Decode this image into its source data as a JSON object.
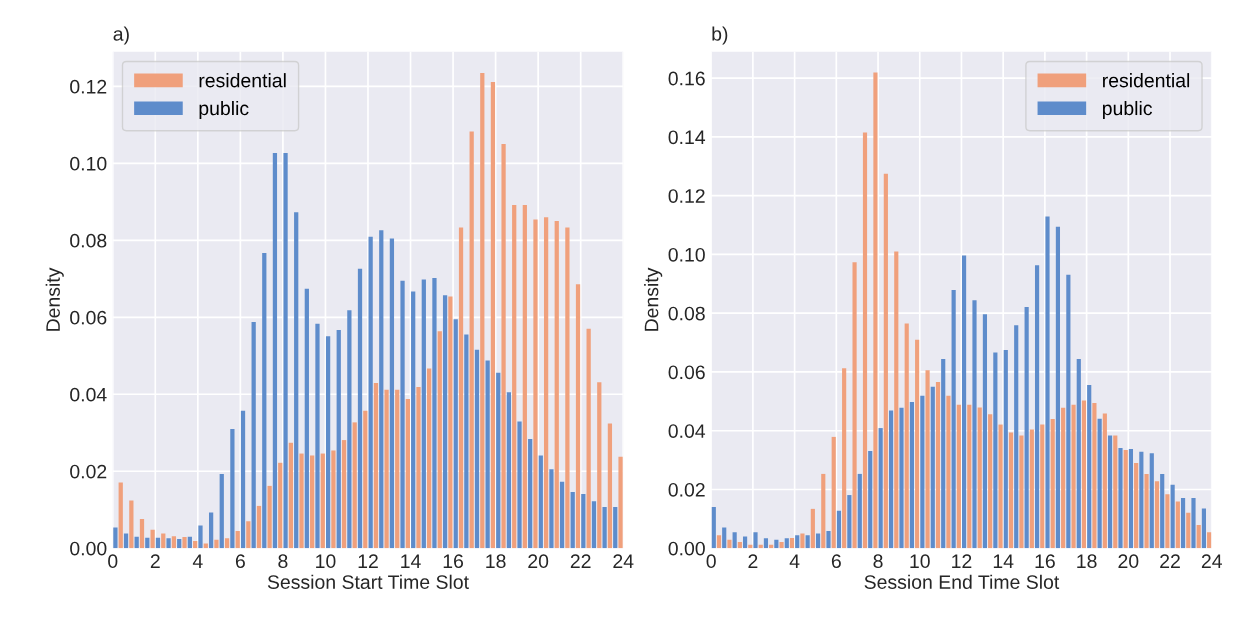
{
  "chart_data": [
    {
      "type": "histogram",
      "title": "a)",
      "xlabel": "Session Start Time Slot",
      "ylabel": "Density",
      "bins": [
        0,
        0.5,
        1,
        1.5,
        2,
        2.5,
        3,
        3.5,
        4,
        4.5,
        5,
        5.5,
        6,
        6.5,
        7,
        7.5,
        8,
        8.5,
        9,
        9.5,
        10,
        10.5,
        11,
        11.5,
        12,
        12.5,
        13,
        13.5,
        14,
        14.5,
        15,
        15.5,
        16,
        16.5,
        17,
        17.5,
        18,
        18.5,
        19,
        19.5,
        20,
        20.5,
        21,
        21.5,
        22,
        22.5,
        23,
        23.5,
        24
      ],
      "series": [
        {
          "name": "residential",
          "color": "#f0a07c",
          "values": [
            0.0171,
            0.0124,
            0.0076,
            0.0048,
            0.0038,
            0.0031,
            0.0029,
            0.0019,
            0.0012,
            0.0022,
            0.0026,
            0.0045,
            0.007,
            0.011,
            0.0162,
            0.0222,
            0.0274,
            0.0246,
            0.0241,
            0.0246,
            0.0254,
            0.0281,
            0.0327,
            0.0357,
            0.0429,
            0.0412,
            0.0412,
            0.0388,
            0.0419,
            0.0467,
            0.0564,
            0.0654,
            0.0833,
            0.1083,
            0.1235,
            0.1211,
            0.105,
            0.0892,
            0.0892,
            0.0854,
            0.086,
            0.085,
            0.0833,
            0.0686,
            0.057,
            0.0431,
            0.0324,
            0.0238
          ]
        },
        {
          "name": "public",
          "color": "#5e8ccb",
          "values": [
            0.0054,
            0.0038,
            0.003,
            0.0027,
            0.0027,
            0.0026,
            0.0024,
            0.003,
            0.0059,
            0.0093,
            0.0193,
            0.031,
            0.0357,
            0.0588,
            0.0767,
            0.1027,
            0.1027,
            0.0873,
            0.0674,
            0.0583,
            0.0551,
            0.0567,
            0.0618,
            0.0726,
            0.0809,
            0.0826,
            0.0805,
            0.0695,
            0.0667,
            0.0698,
            0.0702,
            0.0657,
            0.0595,
            0.0555,
            0.0516,
            0.0488,
            0.0456,
            0.0405,
            0.0329,
            0.0284,
            0.0241,
            0.0205,
            0.0173,
            0.0146,
            0.0141,
            0.0122,
            0.0107,
            0.0107
          ]
        }
      ],
      "xlim": [
        0,
        24
      ],
      "xticks": [
        0,
        2,
        4,
        6,
        8,
        10,
        12,
        14,
        16,
        18,
        20,
        22,
        24
      ],
      "ylim": [
        0,
        0.129
      ],
      "yticks": [
        {
          "value": 0,
          "label": "0.00"
        },
        {
          "value": 0.02,
          "label": "0.02"
        },
        {
          "value": 0.04,
          "label": "0.04"
        },
        {
          "value": 0.06,
          "label": "0.06"
        },
        {
          "value": 0.08,
          "label": "0.08"
        },
        {
          "value": 0.1,
          "label": "0.10"
        },
        {
          "value": 0.12,
          "label": "0.12"
        }
      ],
      "grid": true,
      "legend": "top left"
    },
    {
      "type": "histogram",
      "title": "b)",
      "xlabel": "Session End Time Slot",
      "ylabel": "Density",
      "bins": [
        0,
        0.5,
        1,
        1.5,
        2,
        2.5,
        3,
        3.5,
        4,
        4.5,
        5,
        5.5,
        6,
        6.5,
        7,
        7.5,
        8,
        8.5,
        9,
        9.5,
        10,
        10.5,
        11,
        11.5,
        12,
        12.5,
        13,
        13.5,
        14,
        14.5,
        15,
        15.5,
        16,
        16.5,
        17,
        17.5,
        18,
        18.5,
        19,
        19.5,
        20,
        20.5,
        21,
        21.5,
        22,
        22.5,
        23,
        23.5,
        24
      ],
      "series": [
        {
          "name": "residential",
          "color": "#f0a07c",
          "values": [
            0.0044,
            0.0029,
            0.0021,
            0.0012,
            0.0012,
            0.0012,
            0.0021,
            0.0035,
            0.005,
            0.0134,
            0.0253,
            0.0379,
            0.0613,
            0.0973,
            0.1415,
            0.1619,
            0.1275,
            0.101,
            0.0765,
            0.071,
            0.0606,
            0.0566,
            0.0519,
            0.0488,
            0.0488,
            0.0479,
            0.0456,
            0.0421,
            0.0394,
            0.0384,
            0.0404,
            0.0421,
            0.044,
            0.0478,
            0.0488,
            0.0503,
            0.0494,
            0.0459,
            0.0384,
            0.0334,
            0.029,
            0.0253,
            0.0228,
            0.0184,
            0.0159,
            0.0121,
            0.0079,
            0.0054
          ]
        },
        {
          "name": "public",
          "color": "#5e8ccb",
          "values": [
            0.014,
            0.0071,
            0.0054,
            0.004,
            0.0054,
            0.0034,
            0.0029,
            0.0034,
            0.0044,
            0.0044,
            0.005,
            0.0059,
            0.0128,
            0.0181,
            0.0253,
            0.0331,
            0.0409,
            0.0469,
            0.0478,
            0.0498,
            0.0519,
            0.055,
            0.0644,
            0.0879,
            0.0996,
            0.0844,
            0.0796,
            0.0666,
            0.0675,
            0.0759,
            0.0821,
            0.0963,
            0.1129,
            0.1094,
            0.0931,
            0.0644,
            0.0556,
            0.0441,
            0.0384,
            0.0341,
            0.0338,
            0.0328,
            0.0323,
            0.0253,
            0.0216,
            0.0171,
            0.0171,
            0.0135
          ]
        }
      ],
      "xlim": [
        0,
        24
      ],
      "xticks": [
        0,
        2,
        4,
        6,
        8,
        10,
        12,
        14,
        16,
        18,
        20,
        22,
        24
      ],
      "ylim": [
        0,
        0.169
      ],
      "yticks": [
        {
          "value": 0,
          "label": "0.00"
        },
        {
          "value": 0.02,
          "label": "0.02"
        },
        {
          "value": 0.04,
          "label": "0.04"
        },
        {
          "value": 0.06,
          "label": "0.06"
        },
        {
          "value": 0.08,
          "label": "0.08"
        },
        {
          "value": 0.1,
          "label": "0.10"
        },
        {
          "value": 0.12,
          "label": "0.12"
        },
        {
          "value": 0.14,
          "label": "0.14"
        },
        {
          "value": 0.16,
          "label": "0.16"
        }
      ],
      "grid": true,
      "legend": "top right"
    }
  ]
}
